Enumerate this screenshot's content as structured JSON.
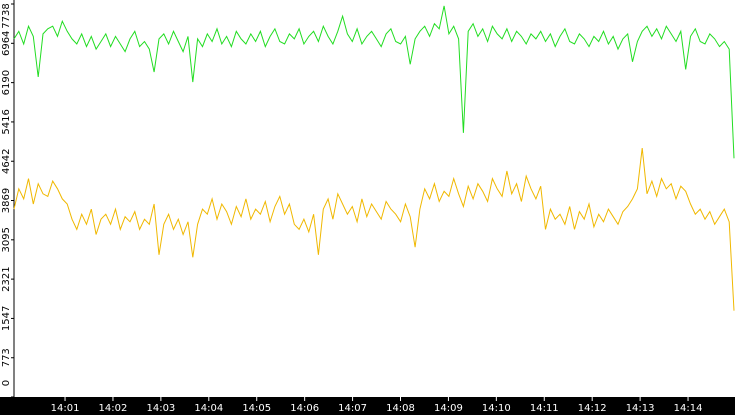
{
  "chart_data": {
    "type": "line",
    "xlim": [
      -0.065,
      14.98
    ],
    "xticks": [
      {
        "value": 1,
        "label": "14:01"
      },
      {
        "value": 2,
        "label": "14:02"
      },
      {
        "value": 3,
        "label": "14:03"
      },
      {
        "value": 4,
        "label": "14:04"
      },
      {
        "value": 5,
        "label": "14:05"
      },
      {
        "value": 6,
        "label": "14:06"
      },
      {
        "value": 7,
        "label": "14:07"
      },
      {
        "value": 8,
        "label": "14:08"
      },
      {
        "value": 9,
        "label": "14:09"
      },
      {
        "value": 10,
        "label": "14:10"
      },
      {
        "value": 11,
        "label": "14:11"
      },
      {
        "value": 12,
        "label": "14:12"
      },
      {
        "value": 13,
        "label": "14:13"
      },
      {
        "value": 14,
        "label": "14:14"
      }
    ],
    "ylim": [
      0,
      7738
    ],
    "yticks": [
      0,
      773,
      1547,
      2321,
      3095,
      3869,
      4642,
      5416,
      6190,
      6964,
      7738
    ],
    "series": [
      {
        "color": "#22dd22",
        "values": [
          7050,
          7200,
          6950,
          7300,
          7100,
          6300,
          7150,
          7250,
          7300,
          7100,
          7400,
          7200,
          7050,
          6950,
          7150,
          6900,
          7100,
          6850,
          7000,
          7150,
          6900,
          7100,
          6950,
          6800,
          7050,
          7200,
          6900,
          7000,
          6850,
          6400,
          7050,
          7150,
          6950,
          7200,
          7000,
          6800,
          7100,
          6200,
          7050,
          6900,
          7150,
          7000,
          7250,
          6950,
          7100,
          6900,
          7200,
          7050,
          6950,
          7150,
          7000,
          7200,
          6900,
          7100,
          7250,
          7000,
          6950,
          7150,
          7050,
          7250,
          6950,
          7100,
          7200,
          7000,
          7300,
          7100,
          6950,
          7200,
          7500,
          7150,
          7000,
          7250,
          6950,
          7100,
          7200,
          7050,
          6900,
          7150,
          7250,
          7000,
          6950,
          7100,
          6550,
          7050,
          7200,
          7300,
          7100,
          7350,
          7250,
          7700,
          7150,
          7300,
          7050,
          5200,
          7200,
          7350,
          7100,
          7250,
          7000,
          7300,
          7150,
          7050,
          7250,
          7000,
          7200,
          7100,
          6950,
          7150,
          7050,
          7200,
          7000,
          7150,
          6900,
          7100,
          7250,
          7000,
          6950,
          7150,
          7050,
          6900,
          7100,
          7000,
          7200,
          6950,
          7100,
          6850,
          7050,
          7150,
          6600,
          7000,
          7200,
          7300,
          7100,
          7250,
          7050,
          7300,
          7150,
          7000,
          7200,
          6450,
          7100,
          7250,
          7000,
          6950,
          7150,
          7050,
          6900,
          7000,
          6850,
          4700
        ]
      },
      {
        "color": "#f0b800",
        "values": [
          3700,
          4100,
          3900,
          4300,
          3800,
          4200,
          4000,
          3950,
          4250,
          4100,
          3900,
          3800,
          3500,
          3300,
          3600,
          3400,
          3700,
          3200,
          3500,
          3600,
          3400,
          3700,
          3300,
          3550,
          3450,
          3650,
          3300,
          3500,
          3400,
          3800,
          2800,
          3400,
          3600,
          3300,
          3500,
          3200,
          3450,
          2750,
          3400,
          3700,
          3600,
          3900,
          3500,
          3800,
          3650,
          3400,
          3750,
          3550,
          3900,
          3500,
          3700,
          3600,
          3850,
          3450,
          3750,
          3950,
          3600,
          3800,
          3400,
          3300,
          3500,
          3250,
          3600,
          2800,
          3700,
          3900,
          3500,
          4000,
          3800,
          3600,
          3750,
          3450,
          3900,
          3550,
          3800,
          3650,
          3500,
          3850,
          3700,
          3600,
          3450,
          3800,
          3550,
          2950,
          3700,
          4100,
          3900,
          4200,
          3850,
          4050,
          3950,
          4300,
          4000,
          3750,
          4150,
          3900,
          4200,
          4050,
          3850,
          4300,
          4100,
          3950,
          4450,
          4000,
          4200,
          3850,
          4350,
          4100,
          3900,
          4150,
          3300,
          3700,
          3500,
          3600,
          3400,
          3750,
          3300,
          3650,
          3500,
          3800,
          3350,
          3600,
          3450,
          3700,
          3550,
          3400,
          3650,
          3750,
          3900,
          4100,
          4900,
          4000,
          4250,
          3950,
          4300,
          4100,
          4200,
          3900,
          4150,
          4050,
          3800,
          3600,
          3700,
          3500,
          3650,
          3400,
          3550,
          3700,
          3450,
          1700
        ]
      }
    ]
  }
}
